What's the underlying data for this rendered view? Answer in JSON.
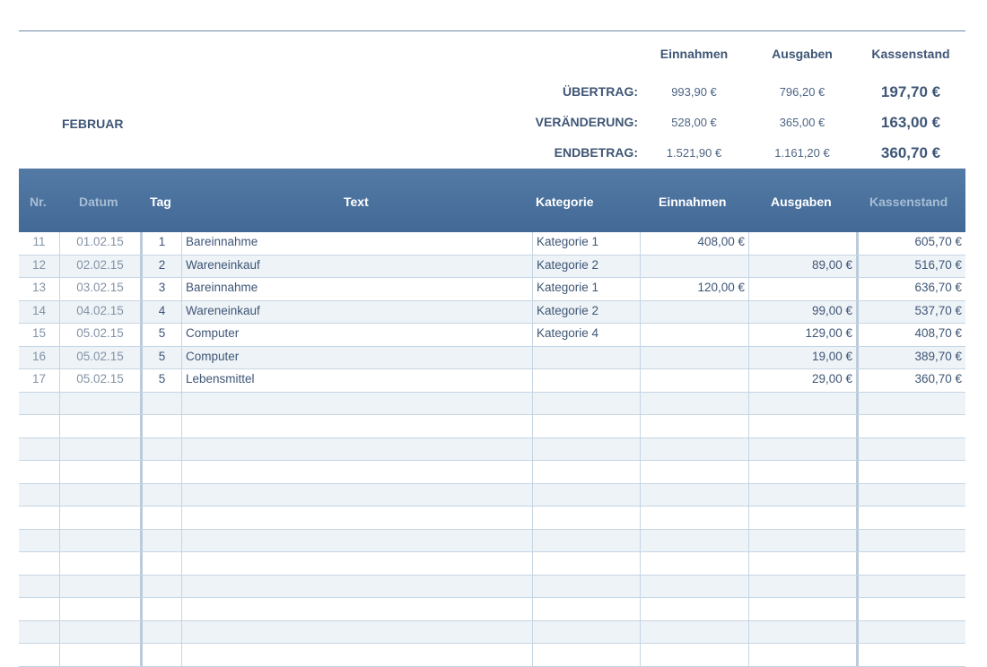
{
  "month": "FEBRUAR",
  "summary": {
    "headers": [
      "Einnahmen",
      "Ausgaben",
      "Kassenstand"
    ],
    "rows": [
      {
        "label": "ÜBERTRAG:",
        "einnahmen": "993,90 €",
        "ausgaben": "796,20 €",
        "kassenstand": "197,70 €"
      },
      {
        "label": "VERÄNDERUNG:",
        "einnahmen": "528,00 €",
        "ausgaben": "365,00 €",
        "kassenstand": "163,00 €"
      },
      {
        "label": "ENDBETRAG:",
        "einnahmen": "1.521,90 €",
        "ausgaben": "1.161,20 €",
        "kassenstand": "360,70 €"
      }
    ]
  },
  "table": {
    "columns": [
      "Nr.",
      "Datum",
      "Tag",
      "Text",
      "Kategorie",
      "Einnahmen",
      "Ausgaben",
      "Kassenstand"
    ],
    "rows": [
      [
        "11",
        "01.02.15",
        "1",
        "Bareinnahme",
        "Kategorie 1",
        "408,00 €",
        "",
        "605,70 €"
      ],
      [
        "12",
        "02.02.15",
        "2",
        "Wareneinkauf",
        "Kategorie 2",
        "",
        "89,00 €",
        "516,70 €"
      ],
      [
        "13",
        "03.02.15",
        "3",
        "Bareinnahme",
        "Kategorie 1",
        "120,00 €",
        "",
        "636,70 €"
      ],
      [
        "14",
        "04.02.15",
        "4",
        "Wareneinkauf",
        "Kategorie 2",
        "",
        "99,00 €",
        "537,70 €"
      ],
      [
        "15",
        "05.02.15",
        "5",
        "Computer",
        "Kategorie 4",
        "",
        "129,00 €",
        "408,70 €"
      ],
      [
        "16",
        "05.02.15",
        "5",
        "Computer",
        "",
        "",
        "19,00 €",
        "389,70 €"
      ],
      [
        "17",
        "05.02.15",
        "5",
        "Lebensmittel",
        "",
        "",
        "29,00 €",
        "360,70 €"
      ]
    ]
  },
  "colors": {
    "header": "#4a71a0",
    "stripe": "#eef3f7",
    "text": "#3f5676"
  }
}
